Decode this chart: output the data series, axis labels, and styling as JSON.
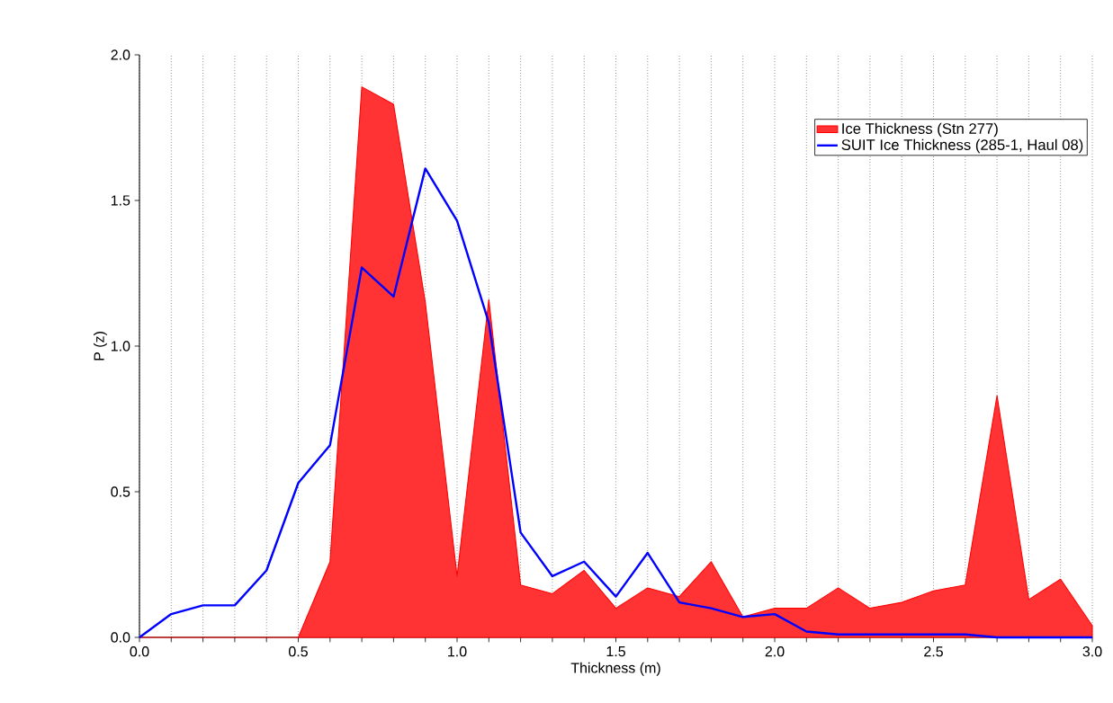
{
  "chart_data": {
    "type": "area",
    "xlabel": "Thickness (m)",
    "ylabel": "P (z)",
    "x": [
      0.0,
      0.1,
      0.2,
      0.3,
      0.4,
      0.5,
      0.6,
      0.7,
      0.8,
      0.9,
      1.0,
      1.1,
      1.2,
      1.3,
      1.4,
      1.5,
      1.6,
      1.7,
      1.8,
      1.9,
      2.0,
      2.1,
      2.2,
      2.3,
      2.4,
      2.5,
      2.6,
      2.7,
      2.8,
      2.9,
      3.0
    ],
    "series": [
      {
        "name": "Ice Thickness (Stn 277)",
        "color": "#ff0000",
        "values": [
          0,
          0,
          0,
          0,
          0,
          0,
          0.26,
          1.89,
          1.83,
          1.15,
          0.21,
          1.16,
          0.18,
          0.15,
          0.23,
          0.1,
          0.17,
          0.14,
          0.26,
          0.07,
          0.1,
          0.1,
          0.17,
          0.1,
          0.12,
          0.16,
          0.18,
          0.83,
          0.13,
          0.2,
          0.04
        ]
      },
      {
        "name": "SUIT Ice Thickness (285-1, Haul 08)",
        "type": "line",
        "color": "#0000ff",
        "values": [
          0,
          0.08,
          0.11,
          0.11,
          0.23,
          0.53,
          0.66,
          1.27,
          1.17,
          1.61,
          1.43,
          1.08,
          0.36,
          0.21,
          0.26,
          0.14,
          0.29,
          0.12,
          0.1,
          0.07,
          0.08,
          0.02,
          0.01,
          0.01,
          0.01,
          0.01,
          0.01,
          0,
          0,
          0,
          0
        ]
      }
    ],
    "xlim": [
      0,
      3
    ],
    "ylim": [
      0,
      2
    ],
    "xticks": [
      {
        "value": 0,
        "label": "0.0"
      },
      {
        "value": 0.1,
        "label": null
      },
      {
        "value": 0.2,
        "label": null
      },
      {
        "value": 0.3,
        "label": null
      },
      {
        "value": 0.4,
        "label": null
      },
      {
        "value": 0.5,
        "label": "0.5"
      },
      {
        "value": 0.6,
        "label": null
      },
      {
        "value": 0.7,
        "label": null
      },
      {
        "value": 0.8,
        "label": null
      },
      {
        "value": 0.9,
        "label": null
      },
      {
        "value": 1,
        "label": "1.0"
      },
      {
        "value": 1.1,
        "label": null
      },
      {
        "value": 1.2,
        "label": null
      },
      {
        "value": 1.3,
        "label": null
      },
      {
        "value": 1.4,
        "label": null
      },
      {
        "value": 1.5,
        "label": "1.5"
      },
      {
        "value": 1.6,
        "label": null
      },
      {
        "value": 1.7,
        "label": null
      },
      {
        "value": 1.8,
        "label": null
      },
      {
        "value": 1.9,
        "label": null
      },
      {
        "value": 2,
        "label": "2.0"
      },
      {
        "value": 2.1,
        "label": null
      },
      {
        "value": 2.2,
        "label": null
      },
      {
        "value": 2.3,
        "label": null
      },
      {
        "value": 2.4,
        "label": null
      },
      {
        "value": 2.5,
        "label": "2.5"
      },
      {
        "value": 2.6,
        "label": null
      },
      {
        "value": 2.7,
        "label": null
      },
      {
        "value": 2.8,
        "label": null
      },
      {
        "value": 2.9,
        "label": null
      },
      {
        "value": 3,
        "label": "3.0"
      }
    ],
    "yticks": [
      {
        "value": 0,
        "label": "0.0"
      },
      {
        "value": 0.5,
        "label": "0.5"
      },
      {
        "value": 1,
        "label": "1.0"
      },
      {
        "value": 1.5,
        "label": "1.5"
      },
      {
        "value": 2,
        "label": "2.0"
      }
    ],
    "grid": "x",
    "legend": "top right"
  }
}
